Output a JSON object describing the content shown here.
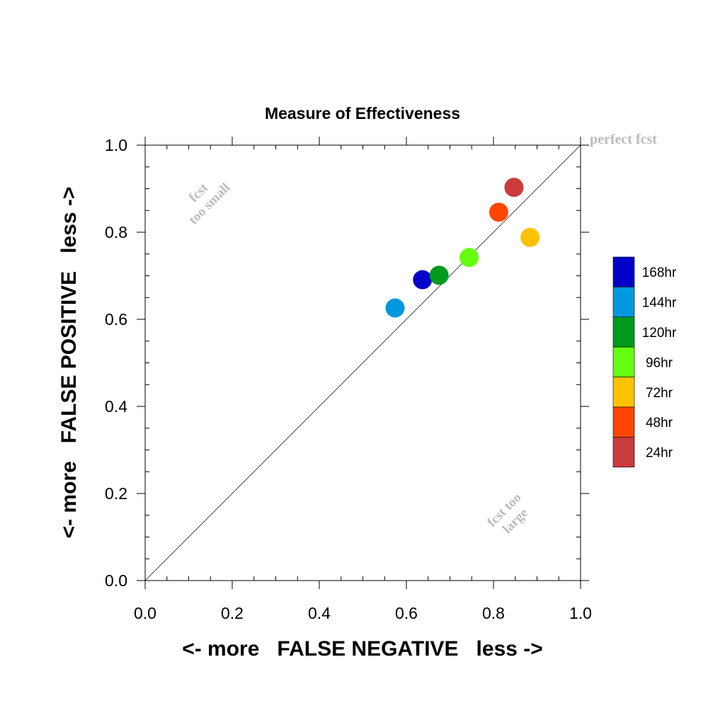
{
  "chart_data": {
    "type": "scatter",
    "title": "Measure of Effectiveness",
    "xlabel": "<- more   FALSE NEGATIVE   less ->",
    "ylabel": "<- more   FALSE POSITIVE   less ->",
    "xlim": [
      0,
      1
    ],
    "ylim": [
      0,
      1
    ],
    "x_ticks": [
      "0.0",
      "0.2",
      "0.4",
      "0.6",
      "0.8",
      "1.0"
    ],
    "y_ticks": [
      "0.0",
      "0.2",
      "0.4",
      "0.6",
      "0.8",
      "1.0"
    ],
    "grid": false,
    "diagonal_reference_line": true,
    "legend_position": "right",
    "annotations": {
      "perfect": "perfect fcst",
      "too_small_line1": "fcst",
      "too_small_line2": "too small",
      "too_large_line1": "fcst too",
      "too_large_line2": "large"
    },
    "points": [
      {
        "label": "168hr",
        "x": 0.637,
        "y": 0.691,
        "color": "#0000c8"
      },
      {
        "label": "144hr",
        "x": 0.574,
        "y": 0.626,
        "color": "#0099dd"
      },
      {
        "label": "120hr",
        "x": 0.675,
        "y": 0.701,
        "color": "#009a1c"
      },
      {
        "label": "96hr",
        "x": 0.744,
        "y": 0.742,
        "color": "#66ff11"
      },
      {
        "label": "72hr",
        "x": 0.884,
        "y": 0.788,
        "color": "#ffc200"
      },
      {
        "label": "48hr",
        "x": 0.812,
        "y": 0.846,
        "color": "#ff4500"
      },
      {
        "label": "24hr",
        "x": 0.847,
        "y": 0.903,
        "color": "#cc3b3b"
      }
    ]
  }
}
